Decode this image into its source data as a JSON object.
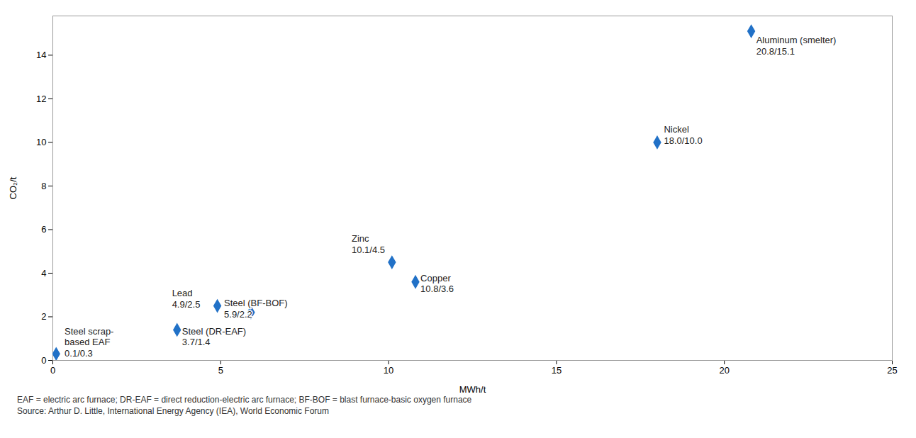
{
  "chart_data": {
    "type": "scatter",
    "xlabel": "MWh/t",
    "ylabel": "CO₂/t",
    "x": [
      0.1,
      3.7,
      4.9,
      5.9,
      10.1,
      10.8,
      18.0,
      20.8
    ],
    "values": [
      0.3,
      1.4,
      2.5,
      2.2,
      4.5,
      3.6,
      10.0,
      15.1
    ],
    "color": "#2171C7",
    "marker": "diamond",
    "annotations": [
      {
        "text": "Steel scrap-\nbased EAF\n0.1/0.3",
        "x": 0.35,
        "y": 1.55
      },
      {
        "text": "Steel (DR-EAF)\n3.7/1.4",
        "x": 3.85,
        "y": 1.55
      },
      {
        "text": "Lead\n4.9/2.5",
        "x": 3.55,
        "y": 3.3
      },
      {
        "text": "Steel (BF-BOF)\n5.9/2.2",
        "x": 5.1,
        "y": 2.85
      },
      {
        "text": "Zinc\n10.1/4.5",
        "x": 8.9,
        "y": 5.8
      },
      {
        "text": "Copper\n10.8/3.6",
        "x": 10.95,
        "y": 4.0
      },
      {
        "text": "Nickel\n18.0/10.0",
        "x": 18.2,
        "y": 10.8
      },
      {
        "text": "Aluminum (smelter)\n20.8/15.1",
        "x": 20.95,
        "y": 14.9
      }
    ],
    "xlim": [
      0,
      25
    ],
    "ylim": [
      0,
      15.8
    ],
    "xticks": [
      0,
      5,
      10,
      15,
      20,
      25
    ],
    "yticks": [
      0,
      2,
      4,
      6,
      8,
      10,
      12,
      14
    ],
    "grid": false,
    "footnotes": [
      "EAF = electric arc furnace; DR-EAF = direct reduction-electric arc furnace; BF-BOF = blast furnace-basic oxygen furnace",
      "Source: Arthur D. Little, International Energy Agency (IEA), World Economic Forum"
    ]
  }
}
